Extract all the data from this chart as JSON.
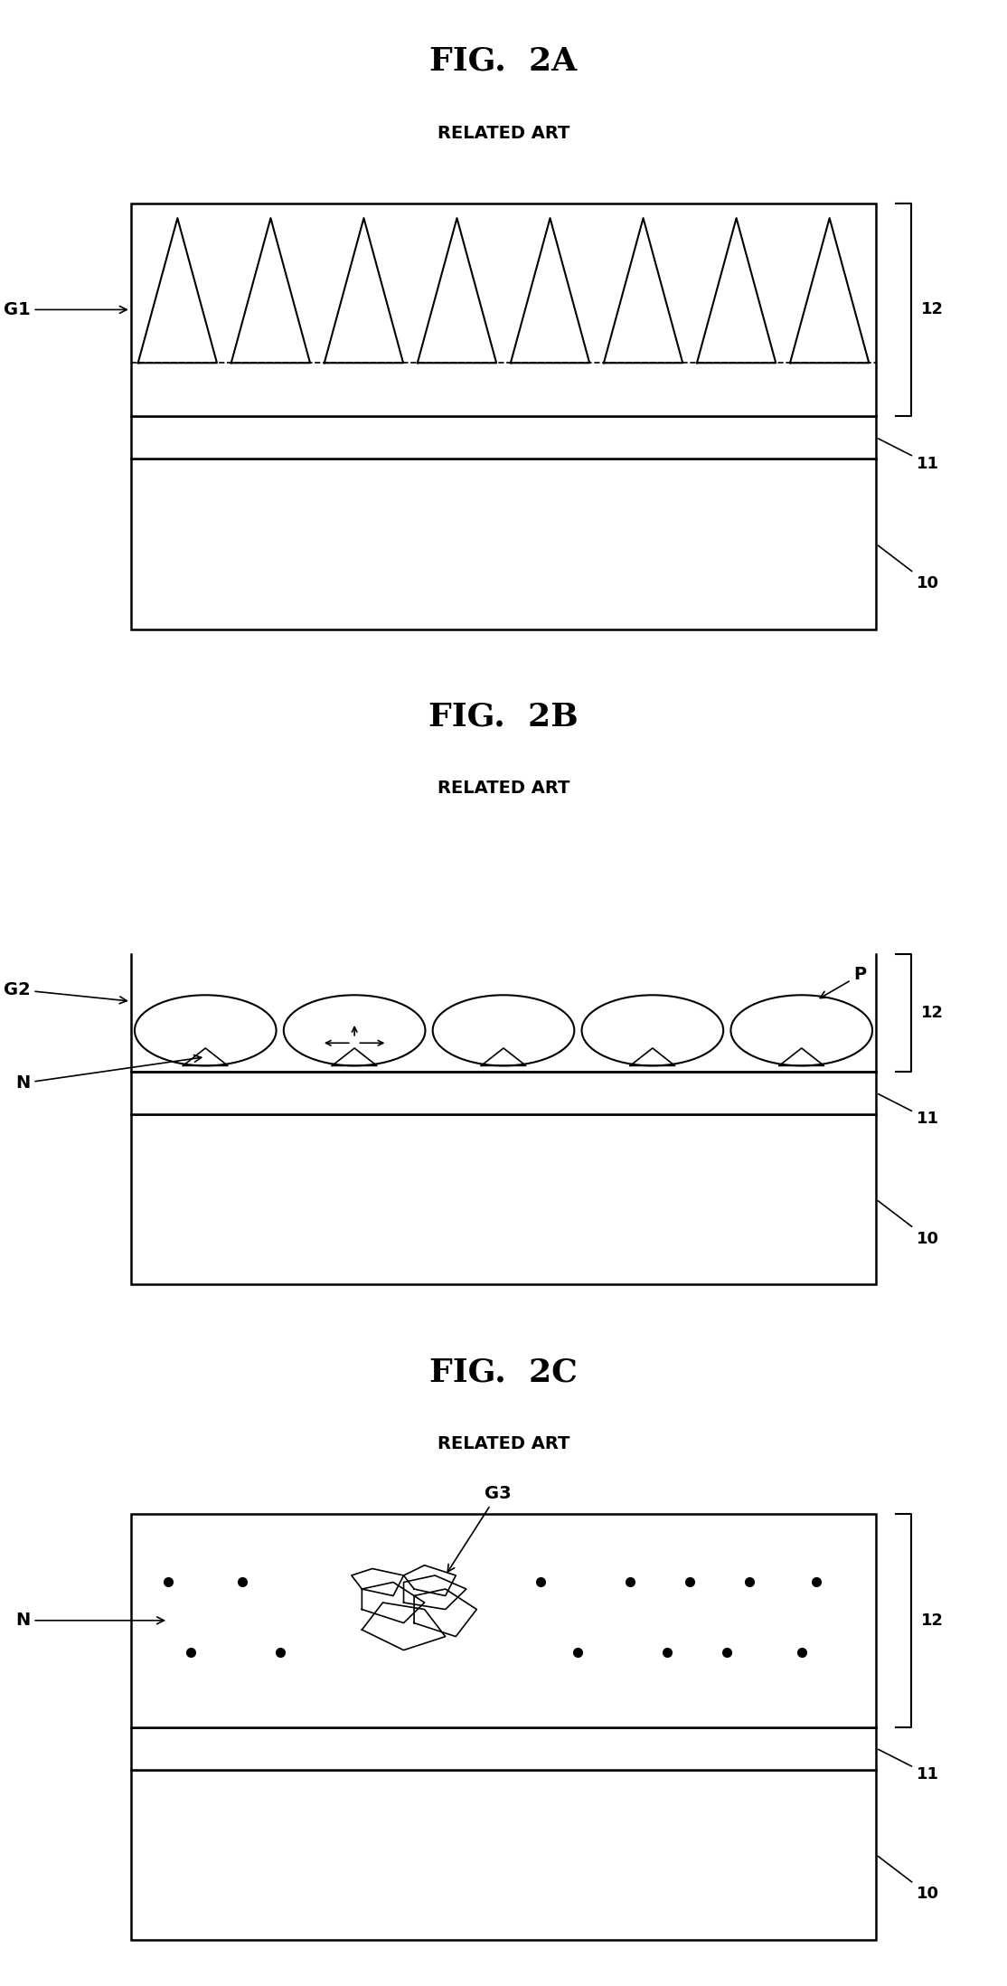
{
  "fig_title_A": "FIG.  2A",
  "fig_title_B": "FIG.  2B",
  "fig_title_C": "FIG.  2C",
  "subtitle": "RELATED ART",
  "bg_color": "#ffffff",
  "line_color": "#000000",
  "label_color": "#000000"
}
